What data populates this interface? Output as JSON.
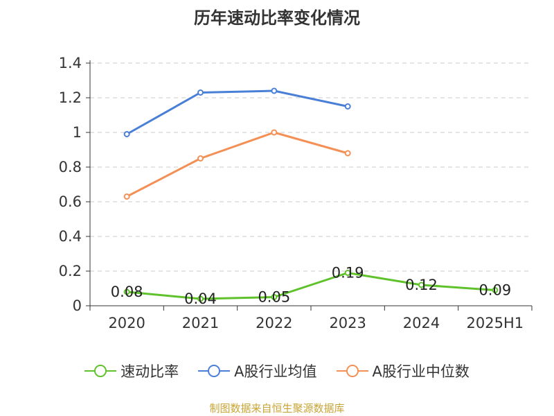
{
  "chart_data": {
    "type": "line",
    "title": "历年速动比率变化情况",
    "categories": [
      "2020",
      "2021",
      "2022",
      "2023",
      "2024",
      "2025H1"
    ],
    "ylim": [
      0,
      1.4
    ],
    "yticks": [
      "0",
      "0.2",
      "0.4",
      "0.6",
      "0.8",
      "1",
      "1.2",
      "1.4"
    ],
    "grid": true,
    "legend_position": "bottom",
    "series": [
      {
        "name": "速动比率",
        "color": "#5fc22a",
        "values": [
          0.08,
          0.04,
          0.05,
          0.19,
          0.12,
          0.09
        ],
        "labels": [
          "0.08",
          "0.04",
          "0.05",
          "0.19",
          "0.12",
          "0.09"
        ]
      },
      {
        "name": "A股行业均值",
        "color": "#4a7fd8",
        "values": [
          0.99,
          1.23,
          1.24,
          1.15,
          null,
          null
        ]
      },
      {
        "name": "A股行业中位数",
        "color": "#f49055",
        "values": [
          0.63,
          0.85,
          1.0,
          0.88,
          null,
          null
        ]
      }
    ]
  },
  "source": "制图数据来自恒生聚源数据库"
}
